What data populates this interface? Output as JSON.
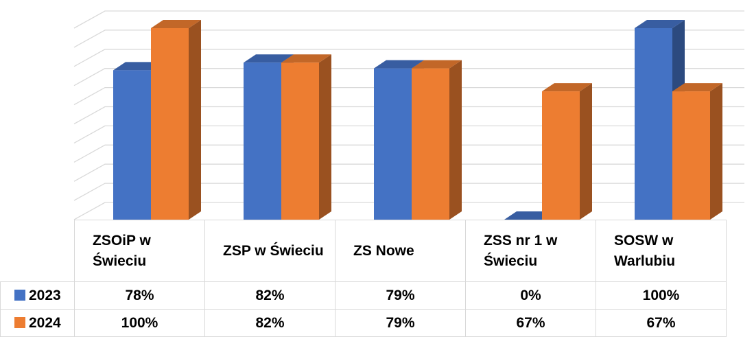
{
  "chart_data": {
    "type": "bar3d",
    "categories": [
      "ZSOiP w Świeciu",
      "ZSP w Świeciu",
      "ZS Nowe",
      "ZSS nr 1 w Świeciu",
      "SOSW w Warlubiu"
    ],
    "series": [
      {
        "name": "2023",
        "color": "#4472c4",
        "values": [
          78,
          82,
          79,
          0,
          100
        ],
        "value_labels": [
          "78%",
          "82%",
          "79%",
          "0%",
          "100%"
        ]
      },
      {
        "name": "2024",
        "color": "#ed7d31",
        "values": [
          100,
          82,
          79,
          67,
          67
        ],
        "value_labels": [
          "100%",
          "82%",
          "79%",
          "67%",
          "67%"
        ]
      }
    ],
    "ylim": [
      0,
      100
    ],
    "yticks": [
      0,
      10,
      20,
      30,
      40,
      50,
      60,
      70,
      80,
      90,
      100
    ],
    "grid": true
  }
}
